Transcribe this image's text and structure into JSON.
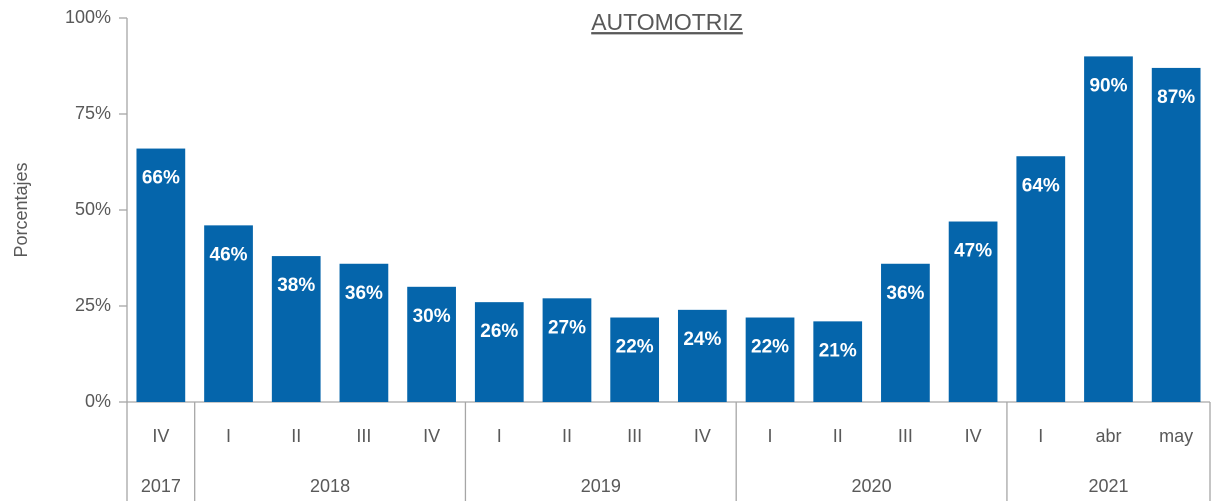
{
  "chart_data": {
    "type": "bar",
    "title": "AUTOMOTRIZ",
    "y_label": "Porcentajes",
    "color": "#0565ab",
    "ylim": [
      0,
      100
    ],
    "yticks": [
      {
        "value": 0,
        "label": "0%"
      },
      {
        "value": 25,
        "label": "25%"
      },
      {
        "value": 50,
        "label": "50%"
      },
      {
        "value": 75,
        "label": "75%"
      },
      {
        "value": 100,
        "label": "100%"
      }
    ],
    "groups": [
      {
        "name": "2017",
        "categories": [
          "IV"
        ],
        "values": [
          66
        ],
        "value_labels": [
          "66%"
        ]
      },
      {
        "name": "2018",
        "categories": [
          "I",
          "II",
          "III",
          "IV"
        ],
        "values": [
          46,
          38,
          36,
          30
        ],
        "value_labels": [
          "46%",
          "38%",
          "36%",
          "30%"
        ]
      },
      {
        "name": "2019",
        "categories": [
          "I",
          "II",
          "III",
          "IV"
        ],
        "values": [
          26,
          27,
          22,
          24
        ],
        "value_labels": [
          "26%",
          "27%",
          "22%",
          "24%"
        ]
      },
      {
        "name": "2020",
        "categories": [
          "I",
          "II",
          "III",
          "IV"
        ],
        "values": [
          22,
          21,
          36,
          47
        ],
        "value_labels": [
          "22%",
          "21%",
          "36%",
          "47%"
        ]
      },
      {
        "name": "2021",
        "categories": [
          "I",
          "abr",
          "may"
        ],
        "values": [
          64,
          90,
          87
        ],
        "value_labels": [
          "64%",
          "90%",
          "87%"
        ]
      }
    ]
  }
}
